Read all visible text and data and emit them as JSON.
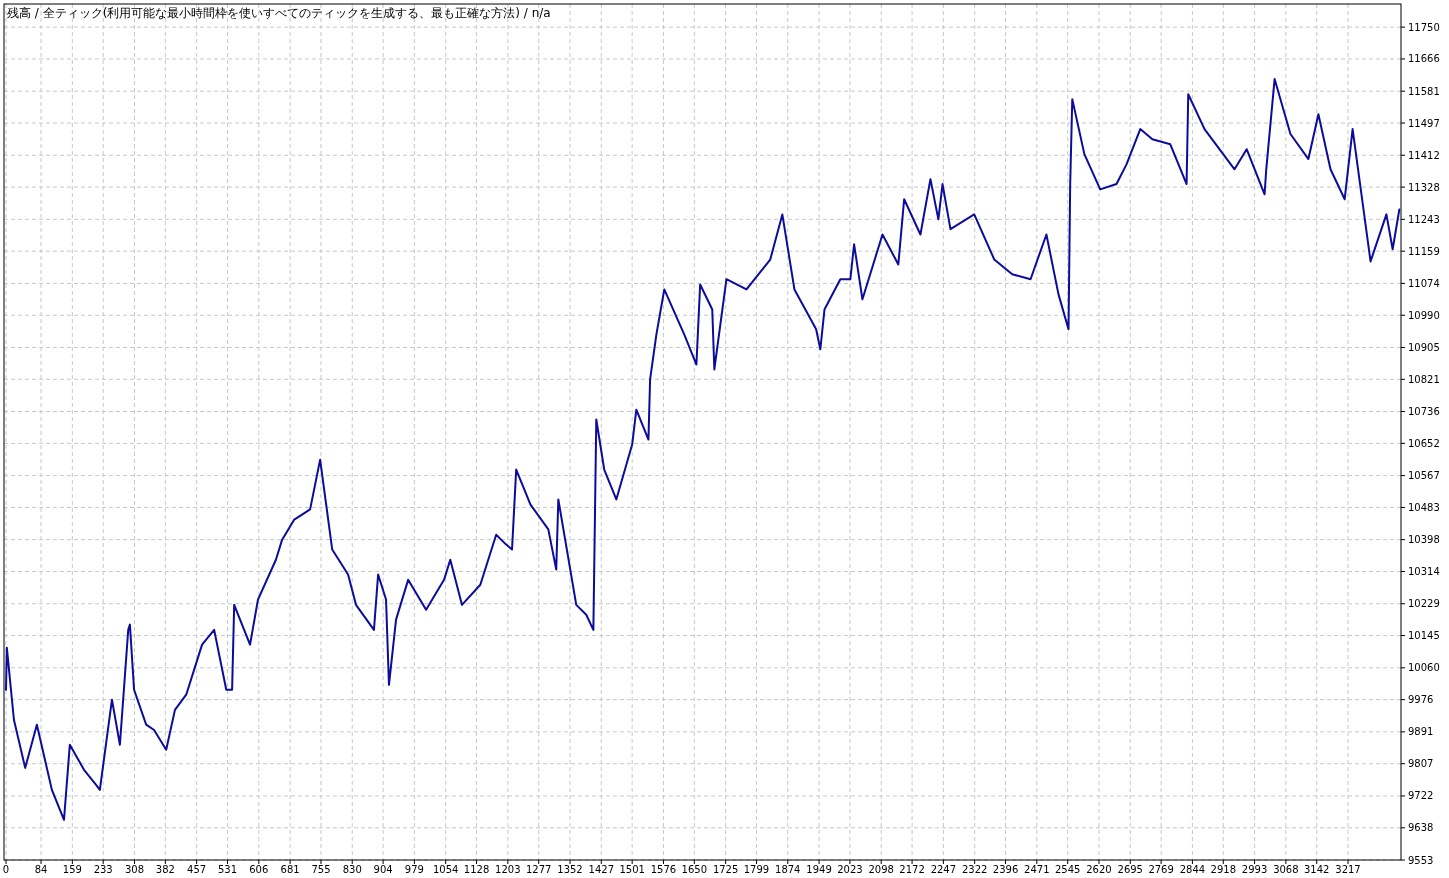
{
  "chart_data": {
    "type": "line",
    "title": "残高 / 全ティック(利用可能な最小時間枠を使いすべてのティックを生成する、最も正確な方法) / n/a",
    "xlim": [
      0,
      3344
    ],
    "ylim": [
      9553,
      11811
    ],
    "xticks": [
      0,
      84,
      159,
      233,
      308,
      382,
      457,
      531,
      606,
      681,
      755,
      830,
      904,
      979,
      1054,
      1128,
      1203,
      1277,
      1352,
      1427,
      1501,
      1576,
      1650,
      1725,
      1799,
      1874,
      1949,
      2023,
      2098,
      2172,
      2247,
      2322,
      2396,
      2471,
      2545,
      2620,
      2695,
      2769,
      2844,
      2918,
      2993,
      3068,
      3142,
      3217
    ],
    "yticks": [
      9553,
      9638,
      9722,
      9807,
      9891,
      9976,
      10060,
      10145,
      10229,
      10314,
      10398,
      10483,
      10567,
      10652,
      10736,
      10821,
      10905,
      10990,
      11074,
      11159,
      11243,
      11328,
      11412,
      11497,
      11581,
      11666,
      11750
    ],
    "grid": true,
    "line_style": "solid",
    "series": [
      {
        "color": "#0c0c9c",
        "x": [
          0,
          2,
          19,
          46,
          74,
          110,
          139,
          153,
          187,
          216,
          225,
          254,
          273,
          293,
          297,
          307,
          336,
          355,
          384,
          405,
          432,
          470,
          499,
          528,
          542,
          547,
          585,
          604,
          647,
          662,
          691,
          729,
          753,
          782,
          820,
          839,
          882,
          892,
          911,
          918,
          935,
          964,
          1007,
          1050,
          1065,
          1093,
          1137,
          1175,
          1199,
          1213,
          1223,
          1257,
          1300,
          1319,
          1324,
          1367,
          1391,
          1408,
          1415,
          1434,
          1463,
          1501,
          1511,
          1540,
          1544,
          1559,
          1578,
          1626,
          1655,
          1664,
          1693,
          1698,
          1727,
          1775,
          1832,
          1861,
          1890,
          1942,
          1952,
          1962,
          2000,
          2024,
          2033,
          2053,
          2101,
          2139,
          2153,
          2192,
          2216,
          2235,
          2245,
          2264,
          2321,
          2369,
          2412,
          2456,
          2494,
          2523,
          2547,
          2551,
          2556,
          2585,
          2623,
          2662,
          2686,
          2719,
          2748,
          2791,
          2830,
          2834,
          2873,
          2945,
          2974,
          3017,
          3021,
          3041,
          3079,
          3122,
          3146,
          3175,
          3209,
          3228,
          3271,
          3309,
          3324,
          3340
        ],
        "values": [
          10002,
          10113,
          9923,
          9796,
          9910,
          9738,
          9659,
          9857,
          9791,
          9751,
          9738,
          9976,
          9857,
          10160,
          10174,
          10002,
          9910,
          9896,
          9844,
          9949,
          9989,
          10121,
          10160,
          10002,
          10002,
          10226,
          10121,
          10240,
          10345,
          10398,
          10451,
          10478,
          10609,
          10372,
          10306,
          10226,
          10160,
          10306,
          10240,
          10015,
          10187,
          10292,
          10213,
          10292,
          10345,
          10226,
          10279,
          10411,
          10385,
          10372,
          10583,
          10491,
          10425,
          10319,
          10504,
          10226,
          10200,
          10160,
          10715,
          10583,
          10504,
          10649,
          10741,
          10662,
          10821,
          10939,
          11058,
          10939,
          10860,
          11071,
          11005,
          10847,
          11085,
          11058,
          11137,
          11256,
          11058,
          10953,
          10900,
          11005,
          11085,
          11085,
          11177,
          11032,
          11203,
          11124,
          11296,
          11203,
          11349,
          11243,
          11336,
          11217,
          11256,
          11137,
          11098,
          11085,
          11203,
          11045,
          10953,
          11336,
          11560,
          11415,
          11322,
          11336,
          11388,
          11481,
          11454,
          11441,
          11336,
          11573,
          11481,
          11375,
          11428,
          11309,
          11375,
          11613,
          11468,
          11402,
          11520,
          11375,
          11296,
          11481,
          11132,
          11256,
          11164,
          11269
        ]
      }
    ]
  }
}
